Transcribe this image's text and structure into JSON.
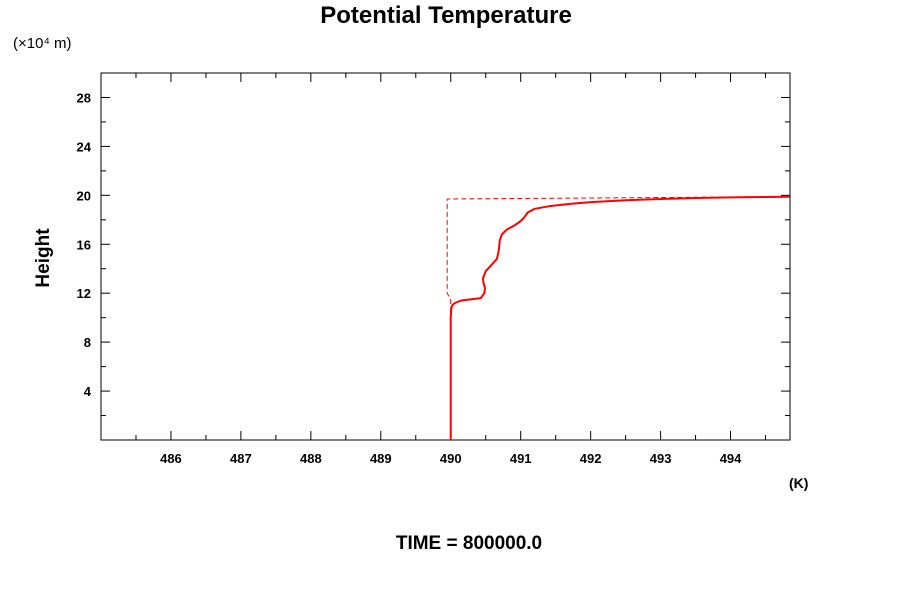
{
  "chart_data": {
    "type": "line",
    "title": "Potential Temperature",
    "ylabel": "Height",
    "yunit": "(×10⁴ m)",
    "xunit": "(K)",
    "footer": "TIME = 800000.0",
    "xlim": [
      485.0,
      494.85
    ],
    "ylim": [
      0,
      30
    ],
    "xticks": [
      486,
      487,
      488,
      489,
      490,
      491,
      492,
      493,
      494
    ],
    "yticks": [
      4,
      8,
      12,
      16,
      20,
      24,
      28
    ],
    "line_color": "#ff0000",
    "series": [
      {
        "style": "solid",
        "x": [
          490.0,
          490.0,
          490.0,
          490.01,
          490.02,
          490.06,
          490.15,
          490.3,
          490.43,
          490.48,
          490.49,
          490.47,
          490.46,
          490.5,
          490.58,
          490.66,
          490.69,
          490.7,
          490.73,
          490.8,
          490.9,
          491.0,
          491.05,
          491.1,
          491.2,
          491.4,
          491.7,
          492.0,
          492.5,
          493.0,
          493.5,
          494.0,
          494.5,
          494.85
        ],
        "y": [
          0.0,
          5.0,
          10.0,
          10.8,
          11.0,
          11.2,
          11.4,
          11.5,
          11.6,
          12.0,
          12.4,
          12.8,
          13.2,
          13.8,
          14.3,
          14.8,
          15.6,
          16.3,
          16.8,
          17.2,
          17.5,
          17.9,
          18.2,
          18.6,
          18.9,
          19.1,
          19.3,
          19.45,
          19.6,
          19.7,
          19.78,
          19.83,
          19.86,
          19.88
        ]
      },
      {
        "style": "dashed",
        "x": [
          490.0,
          490.0,
          489.95,
          489.95,
          494.85
        ],
        "y": [
          0.0,
          11.5,
          12.0,
          19.7,
          19.9
        ]
      }
    ]
  }
}
